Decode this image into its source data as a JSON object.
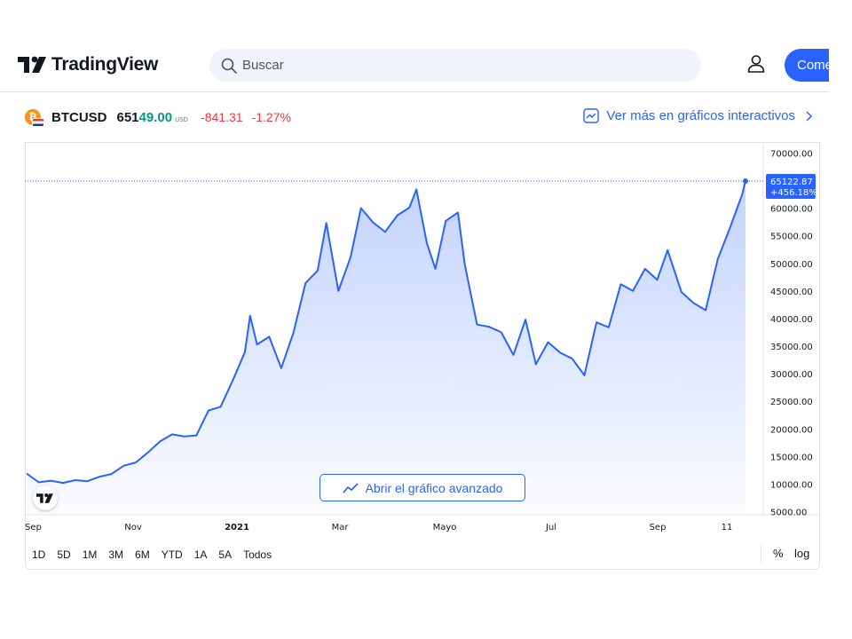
{
  "header": {
    "logo_text": "TradingView",
    "search_placeholder": "Buscar",
    "start_button": "Come"
  },
  "symbol": {
    "ticker": "BTCUSD",
    "price_prefix": "651",
    "price_suffix": "49.00",
    "currency": "USD",
    "change": "-841.31",
    "change_pct": "-1.27%",
    "more_link": "Ver más en gráficos interactivos"
  },
  "chart_data": {
    "type": "area",
    "title": "",
    "xlabel": "",
    "ylabel": "",
    "ylim": [
      5000,
      72000
    ],
    "y_ticks": [
      "70000.00",
      "65000.00",
      "60000.00",
      "55000.00",
      "50000.00",
      "45000.00",
      "40000.00",
      "35000.00",
      "30000.00",
      "25000.00",
      "20000.00",
      "15000.00",
      "10000.00",
      "5000.00"
    ],
    "x_tick_labels": [
      "Sep",
      "Nov",
      "2021",
      "Mar",
      "Mayo",
      "Jul",
      "Sep",
      "11"
    ],
    "last_price_label": "65122.87",
    "last_change_label": "+456.18%",
    "series": [
      {
        "color": "#2962ff",
        "x": [
          "2020-09-01",
          "2020-09-08",
          "2020-09-15",
          "2020-09-22",
          "2020-09-29",
          "2020-10-06",
          "2020-10-13",
          "2020-10-20",
          "2020-10-27",
          "2020-11-03",
          "2020-11-10",
          "2020-11-17",
          "2020-11-24",
          "2020-12-01",
          "2020-12-08",
          "2020-12-15",
          "2020-12-22",
          "2020-12-29",
          "2021-01-05",
          "2021-01-08",
          "2021-01-12",
          "2021-01-19",
          "2021-01-26",
          "2021-02-02",
          "2021-02-09",
          "2021-02-16",
          "2021-02-21",
          "2021-02-28",
          "2021-03-07",
          "2021-03-13",
          "2021-03-20",
          "2021-03-27",
          "2021-04-03",
          "2021-04-10",
          "2021-04-14",
          "2021-04-20",
          "2021-04-25",
          "2021-05-01",
          "2021-05-08",
          "2021-05-12",
          "2021-05-19",
          "2021-05-26",
          "2021-06-02",
          "2021-06-09",
          "2021-06-16",
          "2021-06-22",
          "2021-06-29",
          "2021-07-06",
          "2021-07-13",
          "2021-07-20",
          "2021-07-27",
          "2021-08-03",
          "2021-08-10",
          "2021-08-17",
          "2021-08-24",
          "2021-08-31",
          "2021-09-06",
          "2021-09-14",
          "2021-09-21",
          "2021-09-28",
          "2021-10-05",
          "2021-10-12",
          "2021-10-19",
          "2021-10-21"
        ],
        "values": [
          12000,
          10400,
          10700,
          10300,
          10800,
          10600,
          11400,
          11900,
          13400,
          14000,
          15800,
          17800,
          19100,
          18700,
          18900,
          23400,
          24100,
          28900,
          34000,
          40600,
          35400,
          36800,
          31100,
          37500,
          46500,
          48800,
          57400,
          45100,
          51200,
          60100,
          57500,
          55800,
          58800,
          60200,
          63500,
          53800,
          49100,
          57800,
          59300,
          49800,
          39000,
          38600,
          37600,
          33500,
          39900,
          31800,
          35800,
          33900,
          32800,
          29800,
          39400,
          38500,
          46300,
          45100,
          49100,
          47100,
          52500,
          44900,
          42900,
          41600,
          50900,
          56500,
          62500,
          65100
        ]
      }
    ]
  },
  "toolbar": {
    "ranges": [
      "1D",
      "5D",
      "1M",
      "3M",
      "6M",
      "YTD",
      "1A",
      "5A",
      "Todos"
    ],
    "percent": "%",
    "log": "log"
  },
  "advanced_button": "Abrir el gráfico avanzado",
  "colors": {
    "accent": "#2962ff",
    "up": "#089981",
    "down": "#f23645"
  }
}
